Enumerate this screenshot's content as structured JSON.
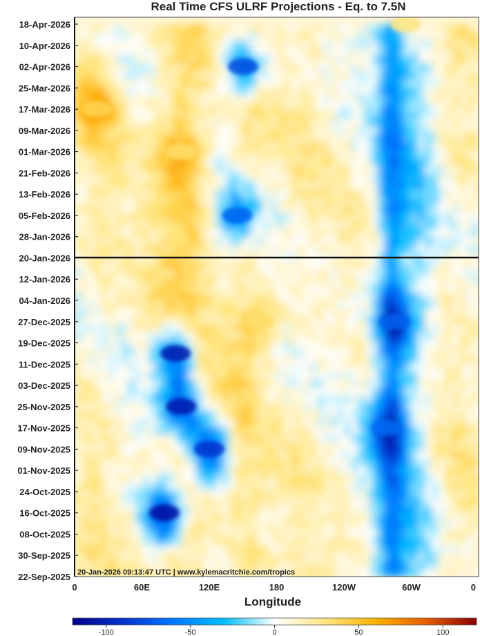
{
  "chart_data": {
    "type": "heatmap",
    "title": "Real Time CFS ULRF Projections - Eq. to 7.5N",
    "xlabel": "Longitude",
    "ylabel": "",
    "x_ticks": [
      "0",
      "60E",
      "120E",
      "180",
      "120W",
      "60W",
      "0"
    ],
    "y_ticks": [
      "18-Apr-2026",
      "10-Apr-2026",
      "02-Apr-2026",
      "25-Mar-2026",
      "17-Mar-2026",
      "09-Mar-2026",
      "01-Mar-2026",
      "21-Feb-2026",
      "13-Feb-2026",
      "05-Feb-2026",
      "28-Jan-2026",
      "20-Jan-2026",
      "12-Jan-2026",
      "04-Jan-2026",
      "27-Dec-2025",
      "19-Dec-2025",
      "11-Dec-2025",
      "03-Dec-2025",
      "25-Nov-2025",
      "17-Nov-2025",
      "09-Nov-2025",
      "01-Nov-2025",
      "24-Oct-2025",
      "16-Oct-2025",
      "08-Oct-2025",
      "30-Sep-2025",
      "22-Sep-2025"
    ],
    "current_date_line": "20-Jan-2026",
    "annotation": "20-Jan-2026 09:13:47 UTC | www.kylemacritchie.com/tropics",
    "colorbar_ticks": [
      "-100",
      "-50",
      "0",
      "50",
      "100"
    ],
    "colorbar_range": [
      -120,
      120
    ],
    "colormap": [
      "#00008b",
      "#0033cc",
      "#0077ff",
      "#00bfff",
      "#ffffff",
      "#ffe680",
      "#ffb300",
      "#e65c00",
      "#8b0000"
    ],
    "features": [
      {
        "type": "negative",
        "lon": 80,
        "date": "2025-10-16",
        "value": -110
      },
      {
        "type": "negative",
        "lon": 95,
        "date": "2025-11-25",
        "value": -105
      },
      {
        "type": "negative",
        "lon": 90,
        "date": "2025-12-15",
        "value": -105
      },
      {
        "type": "negative",
        "lon": 120,
        "date": "2025-11-09",
        "value": -90
      },
      {
        "type": "negative",
        "lon": 150,
        "date": "2026-04-02",
        "value": -80
      },
      {
        "type": "negative",
        "lon": 145,
        "date": "2026-02-05",
        "value": -70
      },
      {
        "type": "negative",
        "lon": 285,
        "date": "2025-12-27",
        "value": -70
      },
      {
        "type": "negative",
        "lon": 278,
        "date": "2025-11-17",
        "value": -65
      },
      {
        "type": "positive",
        "lon": 20,
        "date": "2026-03-17",
        "value": 40
      },
      {
        "type": "positive",
        "lon": 95,
        "date": "2026-03-01",
        "value": 35
      },
      {
        "type": "positive",
        "lon": 165,
        "date": "2025-12-27",
        "value": 35
      },
      {
        "type": "positive",
        "lon": 295,
        "date": "2026-04-18",
        "value": 30
      }
    ]
  }
}
